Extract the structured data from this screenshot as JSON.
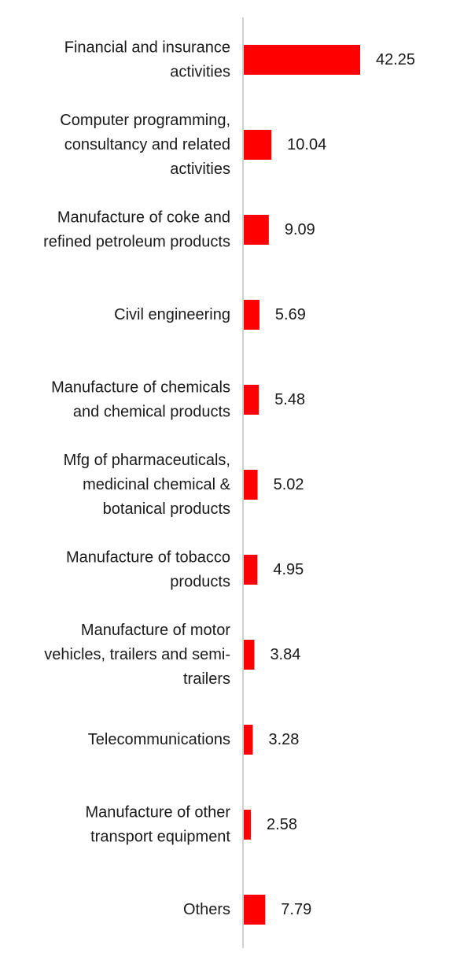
{
  "chart_data": {
    "type": "bar",
    "orientation": "horizontal",
    "title": "",
    "xlabel": "",
    "ylabel": "",
    "grid": false,
    "legend": "none",
    "bar_color": "#ff0000",
    "axis_color": "#d0d0d0",
    "categories": [
      [
        "Financial and insurance",
        "activities"
      ],
      [
        "Computer programming,",
        "consultancy and related",
        "activities"
      ],
      [
        "Manufacture of coke and",
        "refined petroleum products"
      ],
      [
        "Civil engineering"
      ],
      [
        "Manufacture of chemicals",
        "and chemical products"
      ],
      [
        "Mfg of pharmaceuticals,",
        "medicinal chemical &",
        "botanical products"
      ],
      [
        "Manufacture of tobacco",
        "products"
      ],
      [
        "Manufacture of motor",
        "vehicles, trailers and semi-",
        "trailers"
      ],
      [
        "Telecommunications"
      ],
      [
        "Manufacture of other",
        "transport equipment"
      ],
      [
        "Others"
      ]
    ],
    "values": [
      42.25,
      10.04,
      9.09,
      5.69,
      5.48,
      5.02,
      4.95,
      3.84,
      3.28,
      2.58,
      7.79
    ],
    "value_labels": [
      "42.25",
      "10.04",
      "9.09",
      "5.69",
      "5.48",
      "5.02",
      "4.95",
      "3.84",
      "3.28",
      "2.58",
      "7.79"
    ],
    "xlim": [
      0,
      42.25
    ]
  }
}
